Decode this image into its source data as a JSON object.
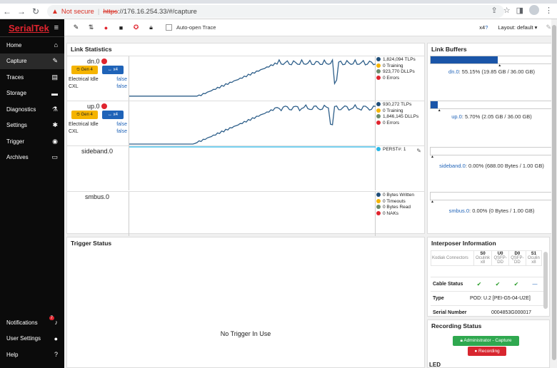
{
  "browser": {
    "warning": "Not secure",
    "url_scheme": "https",
    "url_rest": "://176.16.254.33/#/capture"
  },
  "sidebar": {
    "logo": "SerialTek",
    "items": [
      {
        "label": "Home",
        "icon": "home-icon"
      },
      {
        "label": "Capture",
        "icon": "wrench-icon"
      },
      {
        "label": "Traces",
        "icon": "chart-icon"
      },
      {
        "label": "Storage",
        "icon": "drive-icon"
      },
      {
        "label": "Diagnostics",
        "icon": "flask-icon"
      },
      {
        "label": "Settings",
        "icon": "gear-icon"
      },
      {
        "label": "Trigger",
        "icon": "target-icon"
      },
      {
        "label": "Archives",
        "icon": "archive-icon"
      }
    ],
    "bottom": [
      {
        "label": "Notifications",
        "icon": "bell-icon",
        "badge": "7"
      },
      {
        "label": "User Settings",
        "icon": "user-icon"
      },
      {
        "label": "Help",
        "icon": "help-icon"
      }
    ]
  },
  "toolbar": {
    "auto_open": "Auto-open Trace",
    "x4": "x4",
    "x4_help": "?",
    "layout": "Layout: default"
  },
  "link_stats": {
    "title": "Link Statistics",
    "rows": [
      {
        "name": "dn.0",
        "gen": "Gen 4",
        "lanes": "x4",
        "elec_idle_label": "Electrical Idle",
        "elec_idle": "false",
        "cxl_label": "CXL",
        "cxl": "false",
        "legend": [
          "1,824,094 TLPs",
          "0 Training",
          "923,770 DLLPs",
          "0 Errors"
        ]
      },
      {
        "name": "up.0",
        "gen": "Gen 4",
        "lanes": "x4",
        "elec_idle_label": "Electrical Idle",
        "elec_idle": "false",
        "cxl_label": "CXL",
        "cxl": "false",
        "legend": [
          "930,272 TLPs",
          "0 Training",
          "1,846,145 DLLPs",
          "0 Errors"
        ]
      },
      {
        "name": "sideband.0",
        "legend": [
          "PERST#: 1"
        ]
      },
      {
        "name": "smbus.0",
        "legend": [
          "0 Bytes Written",
          "0 Timeouts",
          "0 Bytes Read",
          "0 NAKs"
        ]
      }
    ],
    "legend_colors": [
      "#1f4e79",
      "#f5b400",
      "#6c8b6c",
      "#e0242e"
    ],
    "sideband_color": "#29b6e6"
  },
  "buffers": {
    "title": "Link Buffers",
    "items": [
      {
        "name": "dn.0",
        "detail": ": 55.15% (19.85 GB / 36.00 GB)",
        "fill": 0.5515
      },
      {
        "name": "up.0",
        "detail": ": 5.70% (2.05 GB / 36.00 GB)",
        "fill": 0.057
      },
      {
        "name": "sideband.0",
        "detail": ": 0.00% (688.00 Bytes / 1.00 GB)",
        "fill": 0
      },
      {
        "name": "smbus.0",
        "detail": ": 0.00% (0 Bytes / 1.00 GB)",
        "fill": 0
      }
    ]
  },
  "trigger": {
    "title": "Trigger Status",
    "message": "No Trigger In Use"
  },
  "interposer": {
    "title": "Interposer Information",
    "connectors_label": "Kodiak Connectors",
    "connectors": [
      {
        "id": "S0",
        "sub1": "Oculink",
        "sub2": "x8"
      },
      {
        "id": "U0",
        "sub1": "QSFP-",
        "sub2": "DD"
      },
      {
        "id": "D0",
        "sub1": "QSFP-",
        "sub2": "DD"
      },
      {
        "id": "S1",
        "sub1": "Oculin",
        "sub2": "x8"
      }
    ],
    "cable_label": "Cable Status",
    "cable": [
      "✔",
      "✔",
      "✔",
      "—"
    ],
    "type_label": "Type",
    "type_value": "POD: U.2 [PEI-G5-04-U2E]",
    "serial_label": "Serial Number",
    "serial_value": "0004853G000017"
  },
  "recording": {
    "title": "Recording Status",
    "admin": "Administrator - Capture",
    "recording": "Recording"
  },
  "led": {
    "title": "LED"
  }
}
